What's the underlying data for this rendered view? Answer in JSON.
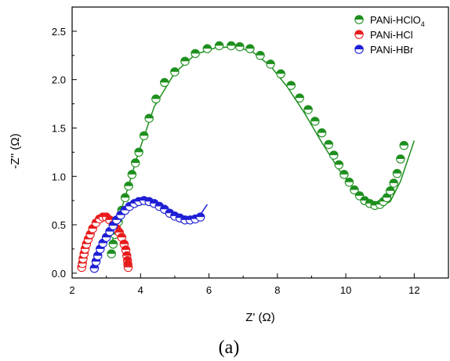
{
  "chart_data": {
    "type": "scatter",
    "xlabel": "Z' (Ω)",
    "ylabel": "-Z'' (Ω)",
    "caption": "(a)",
    "xlim": [
      2,
      13
    ],
    "ylim": [
      -0.05,
      2.75
    ],
    "xticks": [
      2,
      4,
      6,
      8,
      10,
      12
    ],
    "yticks": [
      0.0,
      0.5,
      1.0,
      1.5,
      2.0,
      2.5
    ],
    "ytick_labels": [
      "0.0",
      "0.5",
      "1.0",
      "1.5",
      "2.0",
      "2.5"
    ],
    "grid": false,
    "legend_position": "top-right",
    "series": [
      {
        "name": "PANi-HClO",
        "name_subscript": "4",
        "color": "#1e8f1e",
        "marker": "half-filled-circle",
        "x": [
          3.15,
          3.2,
          3.25,
          3.35,
          3.45,
          3.55,
          3.65,
          3.75,
          3.85,
          3.95,
          4.1,
          4.25,
          4.45,
          4.7,
          5.0,
          5.3,
          5.6,
          5.95,
          6.3,
          6.65,
          6.9,
          7.2,
          7.5,
          7.8,
          8.1,
          8.4,
          8.65,
          8.9,
          9.1,
          9.3,
          9.5,
          9.65,
          9.8,
          9.95,
          10.1,
          10.25,
          10.4,
          10.55,
          10.7,
          10.85,
          11.0,
          11.1,
          11.2,
          11.3,
          11.4,
          11.5,
          11.6,
          11.7
        ],
        "y": [
          0.2,
          0.3,
          0.4,
          0.53,
          0.65,
          0.78,
          0.9,
          1.02,
          1.14,
          1.25,
          1.42,
          1.6,
          1.8,
          1.97,
          2.08,
          2.19,
          2.27,
          2.32,
          2.35,
          2.35,
          2.34,
          2.32,
          2.25,
          2.16,
          2.06,
          1.94,
          1.81,
          1.69,
          1.57,
          1.45,
          1.33,
          1.22,
          1.12,
          1.02,
          0.94,
          0.86,
          0.8,
          0.75,
          0.72,
          0.7,
          0.71,
          0.74,
          0.78,
          0.85,
          0.93,
          1.03,
          1.18,
          1.32
        ]
      },
      {
        "name": "PANi-HCl",
        "color": "#e81c1c",
        "marker": "half-filled-circle",
        "x": [
          2.28,
          2.3,
          2.32,
          2.35,
          2.38,
          2.42,
          2.47,
          2.53,
          2.6,
          2.7,
          2.8,
          2.9,
          3.0,
          3.1,
          3.2,
          3.3,
          3.38,
          3.45,
          3.52,
          3.57,
          3.6,
          3.62,
          3.63,
          3.64
        ],
        "y": [
          0.06,
          0.1,
          0.15,
          0.2,
          0.25,
          0.3,
          0.35,
          0.4,
          0.46,
          0.52,
          0.56,
          0.58,
          0.58,
          0.55,
          0.5,
          0.46,
          0.42,
          0.37,
          0.3,
          0.24,
          0.18,
          0.13,
          0.09,
          0.06
        ]
      },
      {
        "name": "PANi-HBr",
        "color": "#1f1fd6",
        "marker": "half-filled-circle",
        "x": [
          2.65,
          2.7,
          2.75,
          2.82,
          2.9,
          3.0,
          3.1,
          3.2,
          3.3,
          3.42,
          3.55,
          3.68,
          3.82,
          3.95,
          4.1,
          4.25,
          4.4,
          4.55,
          4.7,
          4.85,
          5.0,
          5.15,
          5.3,
          5.45,
          5.6,
          5.75
        ],
        "y": [
          0.05,
          0.12,
          0.18,
          0.25,
          0.31,
          0.37,
          0.43,
          0.49,
          0.55,
          0.6,
          0.65,
          0.69,
          0.72,
          0.74,
          0.75,
          0.74,
          0.72,
          0.69,
          0.66,
          0.62,
          0.59,
          0.57,
          0.55,
          0.55,
          0.56,
          0.58
        ]
      }
    ],
    "fits": [
      {
        "series": "PANi-HClO4",
        "x": [
          3.15,
          3.5,
          3.9,
          4.4,
          5.0,
          5.6,
          6.2,
          6.8,
          7.3,
          7.8,
          8.3,
          8.8,
          9.3,
          9.8,
          10.3,
          10.7,
          11.0,
          11.3,
          11.6,
          12.0
        ],
        "y": [
          0.3,
          0.73,
          1.2,
          1.72,
          2.07,
          2.26,
          2.33,
          2.34,
          2.28,
          2.14,
          1.92,
          1.65,
          1.35,
          1.07,
          0.84,
          0.72,
          0.69,
          0.74,
          0.95,
          1.37
        ]
      },
      {
        "series": "PANi-HCl",
        "x": [
          2.28,
          2.4,
          2.55,
          2.7,
          2.9,
          3.1,
          3.3,
          3.45,
          3.56,
          3.63
        ],
        "y": [
          0.06,
          0.28,
          0.42,
          0.51,
          0.57,
          0.56,
          0.47,
          0.34,
          0.2,
          0.06
        ]
      },
      {
        "series": "PANi-HBr",
        "x": [
          2.65,
          2.8,
          3.0,
          3.3,
          3.6,
          3.9,
          4.2,
          4.5,
          4.8,
          5.1,
          5.4,
          5.7,
          5.95
        ],
        "y": [
          0.05,
          0.22,
          0.38,
          0.55,
          0.67,
          0.74,
          0.75,
          0.71,
          0.64,
          0.58,
          0.55,
          0.58,
          0.71
        ]
      }
    ]
  }
}
